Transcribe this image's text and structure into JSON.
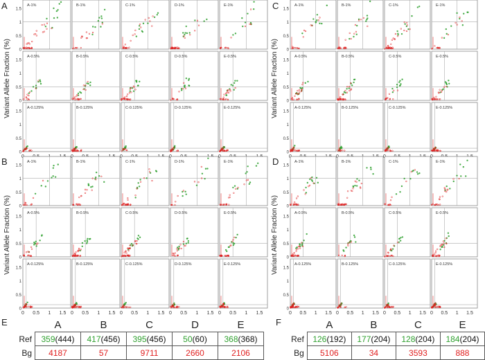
{
  "panels": [
    {
      "letter": "A",
      "ylabel": "Variant Allele Fraction (%)",
      "xticks": [
        "0",
        "0.5",
        "1",
        "1.5"
      ],
      "yticks": [
        "0",
        "0.5",
        "1",
        "1.5"
      ],
      "subtitles": [
        [
          "A-1%",
          "B-1%",
          "C-1%",
          "D-1%",
          "E-1%"
        ],
        [
          "A-0.5%",
          "B-0.5%",
          "C-0.5%",
          "D-0.5%",
          "E-0.5%"
        ],
        [
          "A-0.125%",
          "B-0.125%",
          "C-0.125%",
          "D-0.125%",
          "E-0.125%"
        ]
      ]
    },
    {
      "letter": "B",
      "ylabel": "Variant Allele Fraction (%)",
      "xticks": [
        "0",
        "0.5",
        "1",
        "1.5"
      ],
      "yticks": [
        "0",
        "0.5",
        "1",
        "1.5"
      ],
      "subtitles": [
        [
          "A-1%",
          "B-1%",
          "C-1%",
          "D-1%",
          "E-1%"
        ],
        [
          "A-0.5%",
          "B-0.5%",
          "C-0.5%",
          "D-0.5%",
          "E-0.5%"
        ],
        [
          "A-0.125%",
          "B-0.125%",
          "C-0.125%",
          "D-0.125%",
          "E-0.125%"
        ]
      ]
    },
    {
      "letter": "C",
      "ylabel": "Variant Allele Fraction (%)",
      "xticks": [
        "0",
        "0.5",
        "1",
        "1.5"
      ],
      "yticks": [
        "0",
        "0.5",
        "1",
        "1.5"
      ],
      "subtitles": [
        [
          "A-1%",
          "B-1%",
          "C-1%",
          "E-1%"
        ],
        [
          "A-0.5%",
          "B-0.5%",
          "C-0.5%",
          "E-0.5%"
        ],
        [
          "A-0.125%",
          "B-0.125%",
          "C-0.125%",
          "E-0.125%"
        ]
      ]
    },
    {
      "letter": "D",
      "ylabel": "Variant Allele Fraction (%)",
      "xticks": [
        "0",
        "0.5",
        "1",
        "1.5"
      ],
      "yticks": [
        "0",
        "0.5",
        "1",
        "1.5"
      ],
      "subtitles": [
        [
          "A-1%",
          "B-1%",
          "C-1%",
          "E-1%"
        ],
        [
          "A-0.5%",
          "B-0.5%",
          "C-0.5%",
          "E-0.5%"
        ],
        [
          "A-0.125%",
          "B-0.125%",
          "C-0.125%",
          "E-0.125%"
        ]
      ]
    }
  ],
  "tables": {
    "E": {
      "letter": "E",
      "columns": [
        "A",
        "B",
        "C",
        "D",
        "E"
      ],
      "ref_label": "Ref",
      "bg_label": "Bg",
      "ref_green": [
        "359",
        "417",
        "395",
        "50",
        "368"
      ],
      "ref_total": [
        "(444)",
        "(456)",
        "(456)",
        "(60)",
        "(368)"
      ],
      "bg": [
        "4187",
        "57",
        "9711",
        "2660",
        "2106"
      ]
    },
    "F": {
      "letter": "F",
      "columns": [
        "A",
        "B",
        "C",
        "E"
      ],
      "ref_label": "Ref",
      "bg_label": "Bg",
      "ref_green": [
        "126",
        "177",
        "128",
        "184"
      ],
      "ref_total": [
        "(192)",
        "(204)",
        "(204)",
        "(204)"
      ],
      "bg": [
        "5106",
        "34",
        "3593",
        "888"
      ]
    }
  },
  "colors": {
    "reference": "#2ea02e",
    "background": "#e02020",
    "frame": "#888888",
    "grid": "#aaaaaa"
  },
  "chart_data": {
    "type": "scatter",
    "xlim": [
      0,
      1.8
    ],
    "ylim": [
      0,
      1.8
    ],
    "xticks": [
      0,
      0.5,
      1,
      1.5
    ],
    "yticks": [
      0,
      0.5,
      1,
      1.5
    ],
    "ylabel": "Variant Allele Fraction (%)",
    "series": [
      {
        "name": "",
        "color": "#2ea02e"
      },
      {
        "name": "",
        "color": "#e02020"
      }
    ],
    "dilution_levels": [
      1,
      0.5,
      0.125
    ]
  }
}
